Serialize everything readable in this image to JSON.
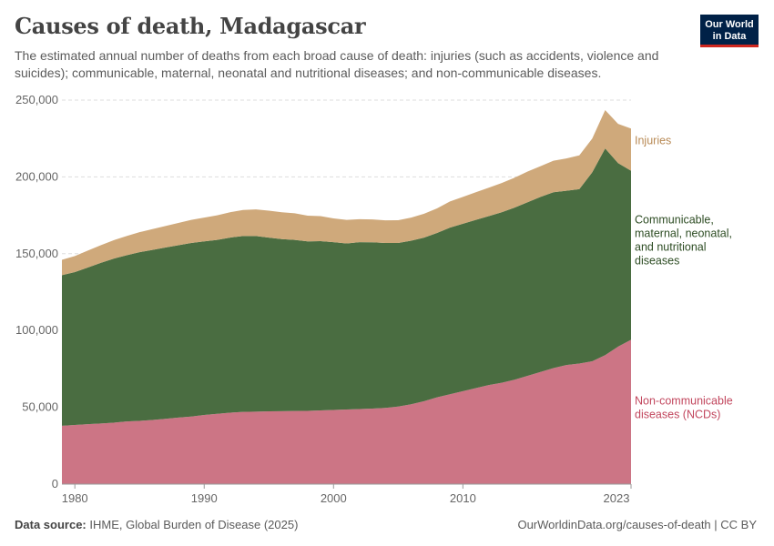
{
  "header": {
    "title": "Causes of death, Madagascar",
    "subtitle": "The estimated annual number of deaths from each broad cause of death: injuries (such as accidents, violence and suicides); communicable, maternal, neonatal and nutritional diseases; and non-communicable diseases."
  },
  "logo": {
    "line1": "Our World",
    "line2": "in Data"
  },
  "footer": {
    "source_label": "Data source:",
    "source_text": "IHME, Global Burden of Disease (2025)",
    "credit": "OurWorldinData.org/causes-of-death | CC BY"
  },
  "colors": {
    "ncd": "#cc7585",
    "communicable": "#4a6d41",
    "injuries": "#cfa97b",
    "ncd_label": "#c2475e",
    "communicable_label": "#2e4d24",
    "injuries_label": "#b88a55",
    "grid": "#dddddd"
  },
  "chart_data": {
    "type": "area",
    "stacked": true,
    "title": "Causes of death, Madagascar",
    "xlabel": "",
    "ylabel": "",
    "xlim": [
      1979,
      2023
    ],
    "ylim": [
      0,
      250000
    ],
    "x_ticks": [
      "1980",
      "1990",
      "2000",
      "2010",
      "2023"
    ],
    "y_ticks": [
      {
        "value": 0,
        "label": "0"
      },
      {
        "value": 50000,
        "label": "50,000"
      },
      {
        "value": 100000,
        "label": "100,000"
      },
      {
        "value": 150000,
        "label": "150,000"
      },
      {
        "value": 200000,
        "label": "200,000"
      },
      {
        "value": 250000,
        "label": "250,000"
      }
    ],
    "x": [
      1979,
      1980,
      1981,
      1982,
      1983,
      1984,
      1985,
      1986,
      1987,
      1988,
      1989,
      1990,
      1991,
      1992,
      1993,
      1994,
      1995,
      1996,
      1997,
      1998,
      1999,
      2000,
      2001,
      2002,
      2003,
      2004,
      2005,
      2006,
      2007,
      2008,
      2009,
      2010,
      2011,
      2012,
      2013,
      2014,
      2015,
      2016,
      2017,
      2018,
      2019,
      2020,
      2021,
      2022,
      2023
    ],
    "series": [
      {
        "name": "Non-communicable diseases (NCDs)",
        "label_lines": [
          "Non-communicable",
          "diseases (NCDs)"
        ],
        "values": [
          38000,
          38500,
          39000,
          39500,
          40000,
          40800,
          41200,
          41800,
          42500,
          43300,
          44000,
          45000,
          45800,
          46500,
          47000,
          47200,
          47400,
          47500,
          47600,
          47700,
          48000,
          48300,
          48600,
          48900,
          49200,
          49600,
          50500,
          52000,
          54000,
          56500,
          58500,
          60500,
          62500,
          64500,
          66000,
          68000,
          70500,
          73000,
          75500,
          77500,
          78500,
          80000,
          84000,
          89500,
          94000
        ]
      },
      {
        "name": "Communicable, maternal, neonatal, and nutritional diseases",
        "label_lines": [
          "Communicable,",
          "maternal, neonatal,",
          "and nutritional",
          "diseases"
        ],
        "values": [
          98000,
          99500,
          102000,
          104500,
          106800,
          108200,
          109800,
          110700,
          111500,
          112200,
          113000,
          113000,
          113200,
          114000,
          114500,
          114300,
          113100,
          112000,
          111400,
          110300,
          110200,
          109200,
          108100,
          108600,
          108200,
          107400,
          106500,
          106500,
          106500,
          107000,
          108500,
          109000,
          109500,
          110000,
          111000,
          112000,
          113000,
          114000,
          114500,
          113500,
          113500,
          123000,
          134500,
          119500,
          110000
        ]
      },
      {
        "name": "Injuries",
        "label_lines": [
          "Injuries"
        ],
        "values": [
          10000,
          10500,
          11000,
          11500,
          12000,
          12500,
          13000,
          13500,
          14000,
          14500,
          15000,
          15500,
          16000,
          16500,
          17000,
          17300,
          17500,
          17500,
          17300,
          16800,
          16300,
          15500,
          15300,
          15000,
          14900,
          14700,
          14800,
          15000,
          15500,
          16000,
          17000,
          17500,
          18000,
          18500,
          19000,
          19500,
          20000,
          20000,
          20500,
          21000,
          22000,
          22000,
          25000,
          25500,
          27500
        ]
      }
    ]
  }
}
